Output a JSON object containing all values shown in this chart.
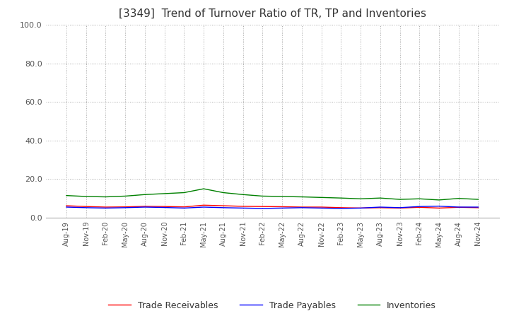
{
  "title": "[3349]  Trend of Turnover Ratio of TR, TP and Inventories",
  "ylim": [
    0,
    100
  ],
  "yticks": [
    0,
    20,
    40,
    60,
    80,
    100
  ],
  "legend_entries": [
    "Trade Receivables",
    "Trade Payables",
    "Inventories"
  ],
  "line_colors": [
    "#ff0000",
    "#0000ff",
    "#008000"
  ],
  "background_color": "#ffffff",
  "grid_color": "#aaaaaa",
  "x_labels": [
    "Aug-19",
    "Nov-19",
    "Feb-20",
    "May-20",
    "Aug-20",
    "Nov-20",
    "Feb-21",
    "May-21",
    "Aug-21",
    "Nov-21",
    "Feb-22",
    "May-22",
    "Aug-22",
    "Nov-22",
    "Feb-23",
    "May-23",
    "Aug-23",
    "Nov-23",
    "Feb-24",
    "May-24",
    "Aug-24",
    "Nov-24"
  ],
  "trade_receivables": [
    6.2,
    5.8,
    5.5,
    5.6,
    5.9,
    5.8,
    5.6,
    6.5,
    6.2,
    5.9,
    5.8,
    5.7,
    5.5,
    5.5,
    5.2,
    5.0,
    5.2,
    5.0,
    5.4,
    5.0,
    5.4,
    5.2
  ],
  "trade_payables": [
    5.5,
    5.2,
    5.0,
    5.2,
    5.5,
    5.3,
    5.0,
    5.5,
    5.2,
    5.0,
    4.8,
    5.0,
    5.2,
    5.0,
    4.8,
    5.0,
    5.5,
    5.2,
    5.8,
    6.0,
    5.5,
    5.5
  ],
  "inventories": [
    11.5,
    11.0,
    10.8,
    11.2,
    12.0,
    12.5,
    13.0,
    15.0,
    13.0,
    12.0,
    11.2,
    11.0,
    10.8,
    10.5,
    10.2,
    9.8,
    10.2,
    9.5,
    9.8,
    9.2,
    10.0,
    9.5
  ]
}
